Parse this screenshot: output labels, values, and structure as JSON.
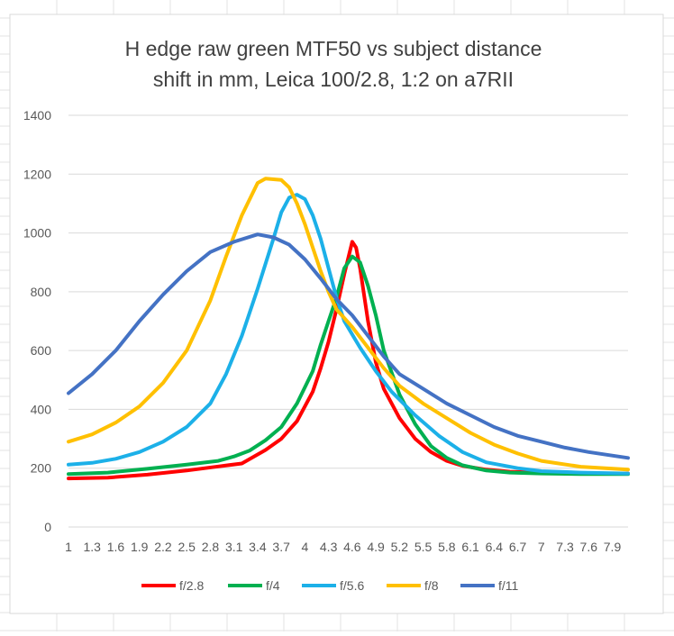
{
  "chart_data": {
    "type": "line",
    "title_lines": [
      "H edge raw  green MTF50 vs subject distance",
      "shift in mm, Leica 100/2.8, 1:2 on a7RII"
    ],
    "xlabel": "",
    "ylabel": "",
    "ylim": [
      0,
      1400
    ],
    "yticks": [
      0,
      200,
      400,
      600,
      800,
      1000,
      1200,
      1400
    ],
    "xlim": [
      1,
      8.1
    ],
    "xtick_labels": [
      {
        "x": 1.0,
        "label": "1"
      },
      {
        "x": 1.3,
        "label": "1.3"
      },
      {
        "x": 1.6,
        "label": "1.6"
      },
      {
        "x": 1.9,
        "label": "1.9"
      },
      {
        "x": 2.2,
        "label": "2.2"
      },
      {
        "x": 2.5,
        "label": "2.5"
      },
      {
        "x": 2.8,
        "label": "2.8"
      },
      {
        "x": 3.1,
        "label": "3.1"
      },
      {
        "x": 3.4,
        "label": "3.4"
      },
      {
        "x": 3.7,
        "label": "3.7"
      },
      {
        "x": 4.0,
        "label": "4"
      },
      {
        "x": 4.3,
        "label": "4.3"
      },
      {
        "x": 4.6,
        "label": "4.6"
      },
      {
        "x": 4.9,
        "label": "4.9"
      },
      {
        "x": 5.2,
        "label": "5.2"
      },
      {
        "x": 5.5,
        "label": "5.5"
      },
      {
        "x": 5.8,
        "label": "5.8"
      },
      {
        "x": 6.1,
        "label": "6.1"
      },
      {
        "x": 6.4,
        "label": "6.4"
      },
      {
        "x": 6.7,
        "label": "6.7"
      },
      {
        "x": 7.0,
        "label": "7"
      },
      {
        "x": 7.3,
        "label": "7.3"
      },
      {
        "x": 7.6,
        "label": "7.6"
      },
      {
        "x": 7.9,
        "label": "7.9"
      }
    ],
    "grid": "horizontal",
    "legend_position": "bottom",
    "series": [
      {
        "name": "f/2.8",
        "color": "#ff0000",
        "points": [
          [
            1.0,
            165
          ],
          [
            1.5,
            168
          ],
          [
            2.0,
            178
          ],
          [
            2.5,
            192
          ],
          [
            2.9,
            206
          ],
          [
            3.2,
            216
          ],
          [
            3.5,
            262
          ],
          [
            3.7,
            300
          ],
          [
            3.9,
            360
          ],
          [
            4.1,
            460
          ],
          [
            4.2,
            540
          ],
          [
            4.3,
            630
          ],
          [
            4.4,
            740
          ],
          [
            4.5,
            860
          ],
          [
            4.6,
            970
          ],
          [
            4.65,
            950
          ],
          [
            4.7,
            880
          ],
          [
            4.8,
            700
          ],
          [
            4.9,
            560
          ],
          [
            5.0,
            470
          ],
          [
            5.2,
            370
          ],
          [
            5.4,
            300
          ],
          [
            5.6,
            255
          ],
          [
            5.8,
            225
          ],
          [
            6.0,
            208
          ],
          [
            6.3,
            195
          ],
          [
            6.6,
            188
          ],
          [
            7.0,
            185
          ],
          [
            7.5,
            182
          ],
          [
            8.1,
            182
          ]
        ]
      },
      {
        "name": "f/4",
        "color": "#00b050",
        "points": [
          [
            1.0,
            180
          ],
          [
            1.5,
            185
          ],
          [
            2.0,
            198
          ],
          [
            2.5,
            212
          ],
          [
            2.9,
            225
          ],
          [
            3.1,
            240
          ],
          [
            3.3,
            260
          ],
          [
            3.5,
            295
          ],
          [
            3.7,
            340
          ],
          [
            3.9,
            420
          ],
          [
            4.1,
            530
          ],
          [
            4.2,
            620
          ],
          [
            4.3,
            700
          ],
          [
            4.4,
            780
          ],
          [
            4.5,
            880
          ],
          [
            4.6,
            920
          ],
          [
            4.7,
            900
          ],
          [
            4.8,
            820
          ],
          [
            4.9,
            720
          ],
          [
            5.0,
            600
          ],
          [
            5.2,
            450
          ],
          [
            5.4,
            350
          ],
          [
            5.6,
            275
          ],
          [
            5.8,
            235
          ],
          [
            6.0,
            210
          ],
          [
            6.3,
            192
          ],
          [
            6.6,
            185
          ],
          [
            7.0,
            182
          ],
          [
            7.5,
            180
          ],
          [
            8.1,
            180
          ]
        ]
      },
      {
        "name": "f/5.6",
        "color": "#1cb0e8",
        "points": [
          [
            1.0,
            212
          ],
          [
            1.3,
            218
          ],
          [
            1.6,
            232
          ],
          [
            1.9,
            255
          ],
          [
            2.2,
            290
          ],
          [
            2.5,
            340
          ],
          [
            2.8,
            420
          ],
          [
            3.0,
            520
          ],
          [
            3.2,
            650
          ],
          [
            3.4,
            810
          ],
          [
            3.6,
            980
          ],
          [
            3.7,
            1070
          ],
          [
            3.8,
            1120
          ],
          [
            3.9,
            1130
          ],
          [
            4.0,
            1115
          ],
          [
            4.1,
            1060
          ],
          [
            4.2,
            980
          ],
          [
            4.3,
            880
          ],
          [
            4.4,
            780
          ],
          [
            4.5,
            700
          ],
          [
            4.7,
            610
          ],
          [
            4.9,
            530
          ],
          [
            5.1,
            460
          ],
          [
            5.4,
            380
          ],
          [
            5.7,
            310
          ],
          [
            6.0,
            255
          ],
          [
            6.3,
            220
          ],
          [
            6.7,
            200
          ],
          [
            7.0,
            190
          ],
          [
            7.5,
            185
          ],
          [
            8.1,
            182
          ]
        ]
      },
      {
        "name": "f/8",
        "color": "#ffc000",
        "points": [
          [
            1.0,
            290
          ],
          [
            1.3,
            315
          ],
          [
            1.6,
            355
          ],
          [
            1.9,
            410
          ],
          [
            2.2,
            490
          ],
          [
            2.5,
            600
          ],
          [
            2.8,
            770
          ],
          [
            3.0,
            920
          ],
          [
            3.2,
            1060
          ],
          [
            3.4,
            1170
          ],
          [
            3.5,
            1185
          ],
          [
            3.7,
            1180
          ],
          [
            3.8,
            1155
          ],
          [
            3.9,
            1100
          ],
          [
            4.0,
            1030
          ],
          [
            4.1,
            950
          ],
          [
            4.2,
            870
          ],
          [
            4.3,
            800
          ],
          [
            4.4,
            740
          ],
          [
            4.6,
            680
          ],
          [
            4.8,
            610
          ],
          [
            5.0,
            540
          ],
          [
            5.2,
            480
          ],
          [
            5.5,
            420
          ],
          [
            5.8,
            370
          ],
          [
            6.1,
            320
          ],
          [
            6.4,
            280
          ],
          [
            6.7,
            250
          ],
          [
            7.0,
            225
          ],
          [
            7.5,
            205
          ],
          [
            8.1,
            195
          ]
        ]
      },
      {
        "name": "f/11",
        "color": "#4472c4",
        "points": [
          [
            1.0,
            455
          ],
          [
            1.3,
            520
          ],
          [
            1.6,
            600
          ],
          [
            1.9,
            700
          ],
          [
            2.2,
            790
          ],
          [
            2.5,
            870
          ],
          [
            2.8,
            935
          ],
          [
            3.1,
            970
          ],
          [
            3.4,
            995
          ],
          [
            3.6,
            985
          ],
          [
            3.8,
            960
          ],
          [
            4.0,
            910
          ],
          [
            4.2,
            845
          ],
          [
            4.4,
            775
          ],
          [
            4.6,
            720
          ],
          [
            4.8,
            650
          ],
          [
            5.0,
            580
          ],
          [
            5.2,
            520
          ],
          [
            5.5,
            470
          ],
          [
            5.8,
            420
          ],
          [
            6.1,
            380
          ],
          [
            6.4,
            340
          ],
          [
            6.7,
            310
          ],
          [
            7.0,
            290
          ],
          [
            7.3,
            270
          ],
          [
            7.6,
            255
          ],
          [
            8.1,
            235
          ]
        ]
      }
    ]
  }
}
